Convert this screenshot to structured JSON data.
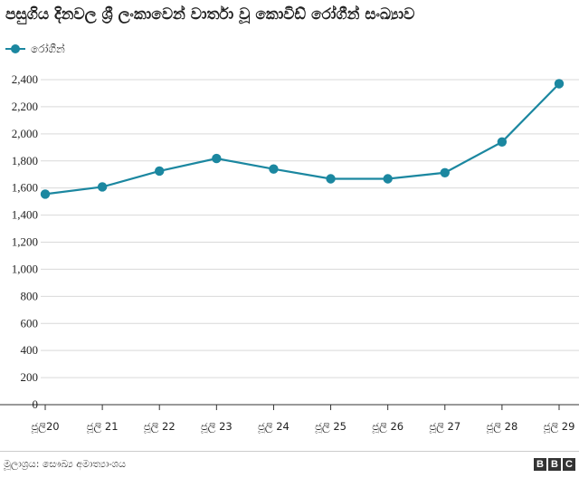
{
  "header": {
    "title": "පසුගිය දිනවල ශ්‍රී ලංකාවෙන් වාර්තා වූ කොවිඩ් රෝගීන් සංඛ්‍යාව"
  },
  "footer": {
    "source": "මූලාශ්‍රය: සෞඛ්‍ය අමාත්‍යාංශය",
    "logo_letters": [
      "B",
      "B",
      "C"
    ]
  },
  "chart_data": {
    "type": "line",
    "categories": [
      "ජූලි20",
      "ජූලි 21",
      "ජූලි 22",
      "ජූලි 23",
      "ජූලි 24",
      "ජූලි 25",
      "ජූලි 26",
      "ජූලි 27",
      "ජූලි 28",
      "ජූලි 29"
    ],
    "series": [
      {
        "name": "රෝගීන්",
        "values": [
          1555,
          1608,
          1725,
          1818,
          1740,
          1668,
          1668,
          1713,
          1940,
          2370
        ]
      }
    ],
    "yticks": [
      "0",
      "200",
      "400",
      "600",
      "800",
      "1,000",
      "1,200",
      "1,400",
      "1,600",
      "1,800",
      "2,000",
      "2,200",
      "2,400"
    ],
    "ylim": [
      0,
      2400
    ],
    "ytick_step": 200,
    "grid": "horizontal",
    "legend_position": "top-left",
    "colors": {
      "line": "#1b87a0",
      "grid": "#d9d9d9",
      "axis": "#333333"
    }
  }
}
